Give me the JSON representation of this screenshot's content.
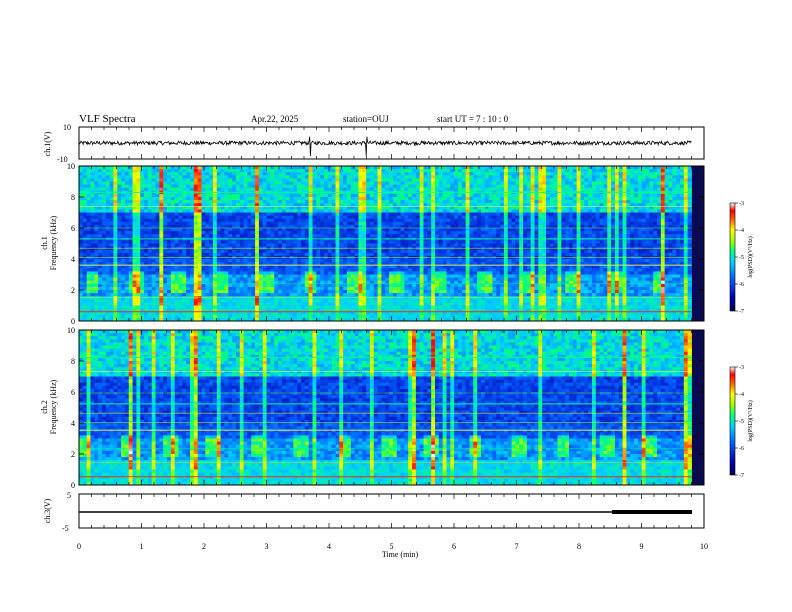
{
  "header": {
    "title": "VLF Spectra",
    "date": "Apr.22, 2025",
    "station": "station=OUJ",
    "start_ut": "start  UT =   7 : 10 : 0"
  },
  "chart_data": [
    {
      "type": "line",
      "panel": "ch1-waveform",
      "ylabel": "ch.1(V)",
      "ylim": [
        -10,
        10
      ],
      "yticks": [
        "10",
        "-10"
      ],
      "xlim": [
        0,
        10
      ],
      "description_values": {
        "baseline": 0,
        "noise_amplitude": 1.2,
        "spikes_at_min": [
          3.7,
          4.6
        ]
      }
    },
    {
      "type": "heatmap",
      "panel": "ch1-spectrogram",
      "ylabel_line1": "ch.1",
      "ylabel_line2": "Frequency (kHz)",
      "ylim": [
        0,
        10
      ],
      "yticks": [
        "0",
        "2",
        "4",
        "6",
        "8",
        "10"
      ],
      "xlim": [
        0,
        10
      ],
      "colorbar": {
        "label": "log(PSD)(V²/Hz)",
        "range": [
          -7,
          -3
        ],
        "ticks": [
          "-3",
          "-4",
          "-5",
          "-6",
          "-7"
        ]
      }
    },
    {
      "type": "heatmap",
      "panel": "ch2-spectrogram",
      "ylabel_line1": "ch.2",
      "ylabel_line2": "Frequency (kHz)",
      "ylim": [
        0,
        10
      ],
      "yticks": [
        "0",
        "2",
        "4",
        "6",
        "8",
        "10"
      ],
      "xlim": [
        0,
        10
      ],
      "colorbar": {
        "label": "log(PSD)(V²/Hz)",
        "range": [
          -7,
          -3
        ],
        "ticks": [
          "-3",
          "-4",
          "-5",
          "-6",
          "-7"
        ]
      }
    },
    {
      "type": "line",
      "panel": "ch3-level",
      "ylabel": "ch.3(V)",
      "ylim": [
        -5,
        5
      ],
      "yticks": [
        "5",
        "0",
        "-5"
      ],
      "xlim": [
        0,
        10
      ],
      "series": [
        {
          "x": [
            0,
            8.55,
            8.55,
            9.8
          ],
          "y": [
            0,
            0,
            0,
            0
          ]
        }
      ],
      "thick_segment_min": [
        8.55,
        9.8
      ]
    }
  ],
  "xaxis": {
    "label": "Time (min)",
    "ticks": [
      "0",
      "1",
      "2",
      "3",
      "4",
      "5",
      "6",
      "7",
      "8",
      "9",
      "10"
    ]
  },
  "colors": {
    "low": "#000050",
    "mid": "#00c8ff",
    "high": "#ff0000",
    "line": "#000000"
  }
}
